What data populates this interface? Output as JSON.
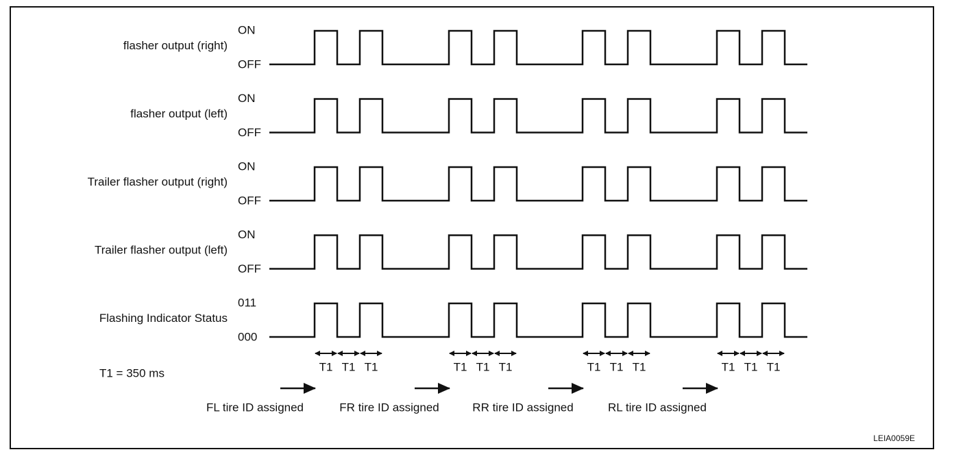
{
  "signals": [
    {
      "name": "flasher output (right)",
      "high": "ON",
      "low": "OFF"
    },
    {
      "name": "flasher output (left)",
      "high": "ON",
      "low": "OFF"
    },
    {
      "name": "Trailer flasher output (right)",
      "high": "ON",
      "low": "OFF"
    },
    {
      "name": "Trailer flasher output (left)",
      "high": "ON",
      "low": "OFF"
    },
    {
      "name": "Flashing Indicator Status",
      "high": "011",
      "low": "000"
    }
  ],
  "timing_groups": [
    {
      "t1_labels": [
        "T1",
        "T1",
        "T1"
      ],
      "assignment": "FL tire ID assigned"
    },
    {
      "t1_labels": [
        "T1",
        "T1",
        "T1"
      ],
      "assignment": "FR tire ID assigned"
    },
    {
      "t1_labels": [
        "T1",
        "T1",
        "T1"
      ],
      "assignment": "RR tire ID assigned"
    },
    {
      "t1_labels": [
        "T1",
        "T1",
        "T1"
      ],
      "assignment": "RL tire ID assigned"
    }
  ],
  "t1_definition": "T1 = 350 ms",
  "figure_id": "LEIA0059E"
}
